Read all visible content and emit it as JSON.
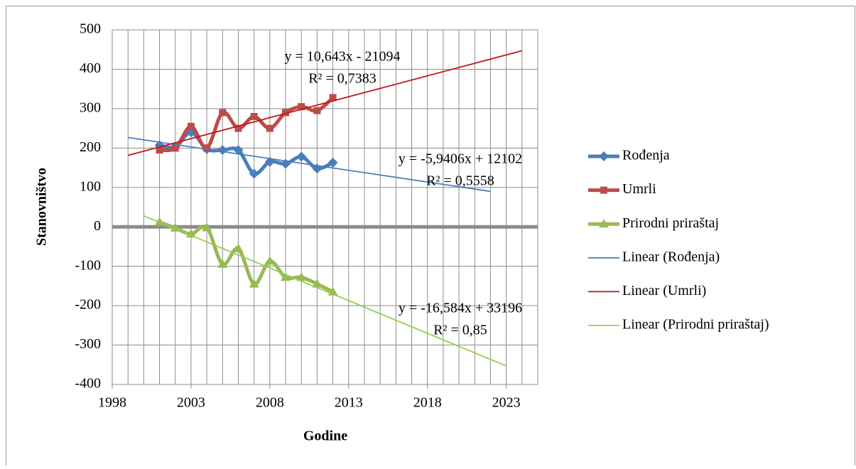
{
  "chart_data": {
    "type": "line",
    "xlabel": "Godine",
    "ylabel": "Stanovništvo",
    "xlim": [
      1998,
      2025
    ],
    "xticks": [
      1998,
      2003,
      2008,
      2013,
      2018,
      2023
    ],
    "xminor_ticks": [
      1998,
      1999,
      2000,
      2001,
      2002,
      2003,
      2004,
      2005,
      2006,
      2007,
      2008,
      2009,
      2010,
      2011,
      2012,
      2013,
      2014,
      2015,
      2016,
      2017,
      2018,
      2019,
      2020,
      2021,
      2022,
      2023,
      2024,
      2025
    ],
    "ylim": [
      -400,
      500
    ],
    "yticks": [
      -400,
      -300,
      -200,
      -100,
      0,
      100,
      200,
      300,
      400,
      500
    ],
    "grid": true,
    "legend": "right",
    "series": [
      {
        "name": "Rođenja",
        "color": "#4a7ebb",
        "marker": "diamond",
        "smooth": true,
        "x": [
          2001,
          2002,
          2003,
          2004,
          2005,
          2006,
          2007,
          2008,
          2009,
          2010,
          2011,
          2012
        ],
        "values": [
          207,
          203,
          240,
          197,
          195,
          195,
          135,
          165,
          160,
          178,
          148,
          163
        ]
      },
      {
        "name": "Umrli",
        "color": "#be4b48",
        "marker": "square",
        "smooth": true,
        "x": [
          2001,
          2002,
          2003,
          2004,
          2005,
          2006,
          2007,
          2008,
          2009,
          2010,
          2011,
          2012
        ],
        "values": [
          195,
          200,
          255,
          200,
          290,
          250,
          280,
          250,
          290,
          305,
          295,
          328
        ]
      },
      {
        "name": "Prirodni priraštaj",
        "color": "#98b954",
        "marker": "triangle",
        "smooth": true,
        "x": [
          2001,
          2002,
          2003,
          2004,
          2005,
          2006,
          2007,
          2008,
          2009,
          2010,
          2011,
          2012
        ],
        "values": [
          12,
          -3,
          -18,
          -2,
          -95,
          -55,
          -145,
          -87,
          -128,
          -128,
          -145,
          -165
        ]
      },
      {
        "name": "Linear (Rođenja)",
        "color": "#4a7ebb",
        "trend": true,
        "x": [
          1999,
          2022
        ],
        "values": [
          226.7,
          90
        ],
        "equation": "y = -5,9406x + 12102",
        "r2": "R² = 0,5558"
      },
      {
        "name": "Linear (Umrli)",
        "color": "#c0161c",
        "trend": true,
        "x": [
          1999,
          2024
        ],
        "values": [
          181.4,
          447
        ],
        "equation": "y = 10,643x - 21094",
        "r2": "R² = 0,7383"
      },
      {
        "name": "Linear (Prirodni priraštaj)",
        "color": "#92d050",
        "trend": true,
        "x": [
          2000,
          2023
        ],
        "values": [
          28,
          -353
        ],
        "equation": "y = -16,584x + 33196",
        "r2": "R² = 0,85"
      }
    ]
  }
}
